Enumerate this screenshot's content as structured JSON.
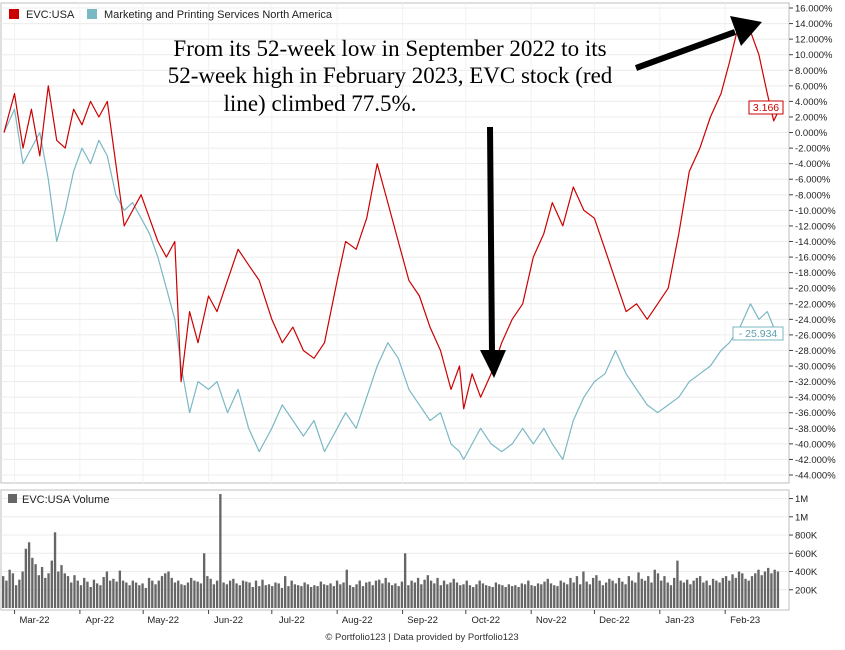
{
  "chart_data": [
    {
      "type": "line",
      "legend_position": "top-left",
      "y_unit": "%",
      "ylim": [
        -44,
        16
      ],
      "y_ticks": [
        "16.000%",
        "14.000%",
        "12.000%",
        "10.000%",
        "8.000%",
        "6.000%",
        "4.000%",
        "2.000%",
        "0.000%",
        "-2.000%",
        "-4.000%",
        "-6.000%",
        "-8.000%",
        "-10.000%",
        "-12.000%",
        "-14.000%",
        "-16.000%",
        "-18.000%",
        "-20.000%",
        "-22.000%",
        "-24.000%",
        "-26.000%",
        "-28.000%",
        "-30.000%",
        "-32.000%",
        "-34.000%",
        "-36.000%",
        "-38.000%",
        "-40.000%",
        "-42.000%",
        "-44.000%"
      ],
      "x_tick_labels": [
        "Mar-22",
        "Apr-22",
        "May-22",
        "Jun-22",
        "Jul-22",
        "Aug-22",
        "Sep-22",
        "Oct-22",
        "Nov-22",
        "Dec-22",
        "Jan-23",
        "Feb-23"
      ],
      "xlim": [
        "2022-02-24",
        "2023-02-27"
      ],
      "grid": true,
      "series": [
        {
          "name": "EVC:USA",
          "color": "#cc0000",
          "last_value_label": "3.166",
          "points": [
            [
              "2022-02-24",
              0.0
            ],
            [
              "2022-03-01",
              5.0
            ],
            [
              "2022-03-05",
              -2.0
            ],
            [
              "2022-03-09",
              3.0
            ],
            [
              "2022-03-13",
              -3.0
            ],
            [
              "2022-03-17",
              6.0
            ],
            [
              "2022-03-21",
              -1.0
            ],
            [
              "2022-03-25",
              -2.0
            ],
            [
              "2022-03-29",
              3.0
            ],
            [
              "2022-04-02",
              1.0
            ],
            [
              "2022-04-06",
              4.0
            ],
            [
              "2022-04-10",
              2.0
            ],
            [
              "2022-04-14",
              4.0
            ],
            [
              "2022-04-18",
              -4.0
            ],
            [
              "2022-04-22",
              -12.0
            ],
            [
              "2022-04-26",
              -10.0
            ],
            [
              "2022-04-30",
              -8.0
            ],
            [
              "2022-05-04",
              -11.0
            ],
            [
              "2022-05-08",
              -14.0
            ],
            [
              "2022-05-12",
              -16.0
            ],
            [
              "2022-05-16",
              -14.0
            ],
            [
              "2022-05-19",
              -32.0
            ],
            [
              "2022-05-23",
              -23.0
            ],
            [
              "2022-05-27",
              -27.0
            ],
            [
              "2022-06-01",
              -21.0
            ],
            [
              "2022-06-05",
              -23.0
            ],
            [
              "2022-06-10",
              -19.0
            ],
            [
              "2022-06-15",
              -15.0
            ],
            [
              "2022-06-20",
              -17.0
            ],
            [
              "2022-06-25",
              -19.0
            ],
            [
              "2022-07-01",
              -24.0
            ],
            [
              "2022-07-06",
              -27.0
            ],
            [
              "2022-07-11",
              -25.0
            ],
            [
              "2022-07-16",
              -28.0
            ],
            [
              "2022-07-21",
              -29.0
            ],
            [
              "2022-07-26",
              -27.0
            ],
            [
              "2022-08-01",
              -19.0
            ],
            [
              "2022-08-05",
              -14.0
            ],
            [
              "2022-08-10",
              -15.0
            ],
            [
              "2022-08-15",
              -11.0
            ],
            [
              "2022-08-20",
              -4.0
            ],
            [
              "2022-08-25",
              -9.0
            ],
            [
              "2022-08-30",
              -14.0
            ],
            [
              "2022-09-04",
              -19.0
            ],
            [
              "2022-09-09",
              -21.0
            ],
            [
              "2022-09-14",
              -25.0
            ],
            [
              "2022-09-19",
              -28.0
            ],
            [
              "2022-09-24",
              -33.0
            ],
            [
              "2022-09-28",
              -30.0
            ],
            [
              "2022-09-30",
              -35.5
            ],
            [
              "2022-10-04",
              -31.0
            ],
            [
              "2022-10-08",
              -34.0
            ],
            [
              "2022-10-13",
              -31.0
            ],
            [
              "2022-10-18",
              -27.0
            ],
            [
              "2022-10-23",
              -24.0
            ],
            [
              "2022-10-28",
              -22.0
            ],
            [
              "2022-11-02",
              -16.0
            ],
            [
              "2022-11-07",
              -13.0
            ],
            [
              "2022-11-11",
              -9.0
            ],
            [
              "2022-11-16",
              -12.0
            ],
            [
              "2022-11-21",
              -7.0
            ],
            [
              "2022-11-26",
              -10.0
            ],
            [
              "2022-12-01",
              -11.0
            ],
            [
              "2022-12-06",
              -15.0
            ],
            [
              "2022-12-11",
              -19.0
            ],
            [
              "2022-12-16",
              -23.0
            ],
            [
              "2022-12-21",
              -22.0
            ],
            [
              "2022-12-26",
              -24.0
            ],
            [
              "2022-12-31",
              -22.0
            ],
            [
              "2023-01-05",
              -20.0
            ],
            [
              "2023-01-10",
              -13.0
            ],
            [
              "2023-01-15",
              -5.0
            ],
            [
              "2023-01-20",
              -2.0
            ],
            [
              "2023-01-25",
              2.0
            ],
            [
              "2023-01-30",
              5.0
            ],
            [
              "2023-02-03",
              9.0
            ],
            [
              "2023-02-08",
              14.5
            ],
            [
              "2023-02-13",
              13.0
            ],
            [
              "2023-02-17",
              10.0
            ],
            [
              "2023-02-21",
              5.0
            ],
            [
              "2023-02-24",
              1.5
            ],
            [
              "2023-02-27",
              3.166
            ]
          ]
        },
        {
          "name": "Marketing and Printing Services North America",
          "color": "#7ab8c4",
          "last_value_label": "- 25.934",
          "points": [
            [
              "2022-02-24",
              0.0
            ],
            [
              "2022-03-01",
              3.0
            ],
            [
              "2022-03-05",
              -4.0
            ],
            [
              "2022-03-09",
              -2.0
            ],
            [
              "2022-03-13",
              0.0
            ],
            [
              "2022-03-17",
              -6.0
            ],
            [
              "2022-03-21",
              -14.0
            ],
            [
              "2022-03-25",
              -10.0
            ],
            [
              "2022-03-29",
              -5.0
            ],
            [
              "2022-04-02",
              -2.0
            ],
            [
              "2022-04-06",
              -4.0
            ],
            [
              "2022-04-10",
              -1.0
            ],
            [
              "2022-04-14",
              -3.0
            ],
            [
              "2022-04-18",
              -8.0
            ],
            [
              "2022-04-22",
              -10.0
            ],
            [
              "2022-04-26",
              -9.0
            ],
            [
              "2022-04-30",
              -11.0
            ],
            [
              "2022-05-04",
              -13.0
            ],
            [
              "2022-05-08",
              -16.0
            ],
            [
              "2022-05-12",
              -20.0
            ],
            [
              "2022-05-16",
              -24.0
            ],
            [
              "2022-05-19",
              -30.0
            ],
            [
              "2022-05-23",
              -36.0
            ],
            [
              "2022-05-27",
              -32.0
            ],
            [
              "2022-06-01",
              -33.0
            ],
            [
              "2022-06-05",
              -32.0
            ],
            [
              "2022-06-10",
              -36.0
            ],
            [
              "2022-06-15",
              -33.0
            ],
            [
              "2022-06-20",
              -38.0
            ],
            [
              "2022-06-25",
              -41.0
            ],
            [
              "2022-07-01",
              -38.0
            ],
            [
              "2022-07-06",
              -35.0
            ],
            [
              "2022-07-11",
              -37.0
            ],
            [
              "2022-07-16",
              -39.0
            ],
            [
              "2022-07-21",
              -37.0
            ],
            [
              "2022-07-26",
              -41.0
            ],
            [
              "2022-08-01",
              -38.0
            ],
            [
              "2022-08-05",
              -36.0
            ],
            [
              "2022-08-10",
              -38.0
            ],
            [
              "2022-08-15",
              -34.0
            ],
            [
              "2022-08-20",
              -30.0
            ],
            [
              "2022-08-25",
              -27.0
            ],
            [
              "2022-08-30",
              -29.0
            ],
            [
              "2022-09-04",
              -33.0
            ],
            [
              "2022-09-09",
              -35.0
            ],
            [
              "2022-09-14",
              -37.0
            ],
            [
              "2022-09-19",
              -36.0
            ],
            [
              "2022-09-24",
              -40.0
            ],
            [
              "2022-09-28",
              -41.0
            ],
            [
              "2022-09-30",
              -42.0
            ],
            [
              "2022-10-04",
              -40.0
            ],
            [
              "2022-10-08",
              -38.0
            ],
            [
              "2022-10-13",
              -40.0
            ],
            [
              "2022-10-18",
              -41.0
            ],
            [
              "2022-10-23",
              -40.0
            ],
            [
              "2022-10-28",
              -38.0
            ],
            [
              "2022-11-02",
              -40.0
            ],
            [
              "2022-11-07",
              -38.0
            ],
            [
              "2022-11-11",
              -40.0
            ],
            [
              "2022-11-16",
              -42.0
            ],
            [
              "2022-11-21",
              -37.0
            ],
            [
              "2022-11-26",
              -34.0
            ],
            [
              "2022-12-01",
              -32.0
            ],
            [
              "2022-12-06",
              -31.0
            ],
            [
              "2022-12-11",
              -28.0
            ],
            [
              "2022-12-16",
              -31.0
            ],
            [
              "2022-12-21",
              -33.0
            ],
            [
              "2022-12-26",
              -35.0
            ],
            [
              "2022-12-31",
              -36.0
            ],
            [
              "2023-01-05",
              -35.0
            ],
            [
              "2023-01-10",
              -34.0
            ],
            [
              "2023-01-15",
              -32.0
            ],
            [
              "2023-01-20",
              -31.0
            ],
            [
              "2023-01-25",
              -30.0
            ],
            [
              "2023-01-30",
              -28.0
            ],
            [
              "2023-02-03",
              -27.0
            ],
            [
              "2023-02-08",
              -25.0
            ],
            [
              "2023-02-13",
              -22.0
            ],
            [
              "2023-02-17",
              -24.0
            ],
            [
              "2023-02-21",
              -23.0
            ],
            [
              "2023-02-24",
              -25.0
            ],
            [
              "2023-02-27",
              -25.934
            ]
          ]
        }
      ]
    },
    {
      "type": "bar",
      "legend_position": "top-left",
      "series_name": "EVC:USA Volume",
      "color": "#666666",
      "ylim": [
        0,
        1250000
      ],
      "y_tick_values": [
        200000,
        400000,
        600000,
        800000,
        1000000,
        1200000
      ],
      "y_tick_labels": [
        "200K",
        "400K",
        "600K",
        "800K",
        "1M",
        "1M"
      ],
      "values": [
        350000,
        300000,
        420000,
        380000,
        250000,
        310000,
        400000,
        650000,
        720000,
        550000,
        480000,
        360000,
        450000,
        330000,
        380000,
        520000,
        830000,
        400000,
        470000,
        380000,
        350000,
        280000,
        360000,
        300000,
        250000,
        330000,
        290000,
        230000,
        310000,
        270000,
        250000,
        340000,
        400000,
        300000,
        320000,
        290000,
        410000,
        300000,
        280000,
        250000,
        300000,
        280000,
        250000,
        270000,
        220000,
        330000,
        300000,
        260000,
        300000,
        350000,
        380000,
        400000,
        330000,
        280000,
        300000,
        260000,
        250000,
        280000,
        330000,
        300000,
        290000,
        270000,
        600000,
        350000,
        320000,
        260000,
        300000,
        1250000,
        280000,
        260000,
        300000,
        320000,
        270000,
        250000,
        300000,
        290000,
        280000,
        230000,
        300000,
        240000,
        310000,
        250000,
        260000,
        240000,
        280000,
        270000,
        220000,
        350000,
        240000,
        300000,
        260000,
        250000,
        240000,
        280000,
        260000,
        230000,
        250000,
        240000,
        290000,
        260000,
        250000,
        270000,
        240000,
        300000,
        260000,
        280000,
        420000,
        250000,
        230000,
        260000,
        300000,
        240000,
        280000,
        290000,
        250000,
        300000,
        310000,
        270000,
        330000,
        280000,
        250000,
        270000,
        240000,
        290000,
        600000,
        250000,
        300000,
        280000,
        330000,
        260000,
        310000,
        360000,
        300000,
        270000,
        330000,
        250000,
        300000,
        260000,
        280000,
        320000,
        280000,
        250000,
        260000,
        300000,
        250000,
        230000,
        260000,
        300000,
        270000,
        250000,
        240000,
        230000,
        280000,
        260000,
        250000,
        230000,
        260000,
        240000,
        250000,
        230000,
        270000,
        260000,
        300000,
        250000,
        240000,
        270000,
        260000,
        290000,
        320000,
        270000,
        250000,
        240000,
        300000,
        280000,
        260000,
        330000,
        280000,
        350000,
        260000,
        400000,
        290000,
        260000,
        330000,
        360000,
        300000,
        250000,
        280000,
        320000,
        300000,
        270000,
        330000,
        290000,
        260000,
        350000,
        300000,
        280000,
        390000,
        320000,
        300000,
        350000,
        280000,
        420000,
        380000,
        300000,
        350000,
        280000,
        250000,
        330000,
        520000,
        300000,
        280000,
        310000,
        260000,
        300000,
        330000,
        350000,
        280000,
        300000,
        250000,
        320000,
        300000,
        280000,
        330000,
        350000,
        300000,
        370000,
        330000,
        400000,
        380000,
        320000,
        300000,
        350000,
        380000,
        420000,
        360000,
        400000,
        440000,
        380000,
        420000,
        400000
      ]
    }
  ],
  "annotation": {
    "line1": "From its 52-week low in September 2022 to its",
    "line2": "52-week high in February 2023, EVC stock (red",
    "line3": "line) climbed 77.5%."
  },
  "footer": "© Portfolio123 | Data provided by Portfolio123"
}
